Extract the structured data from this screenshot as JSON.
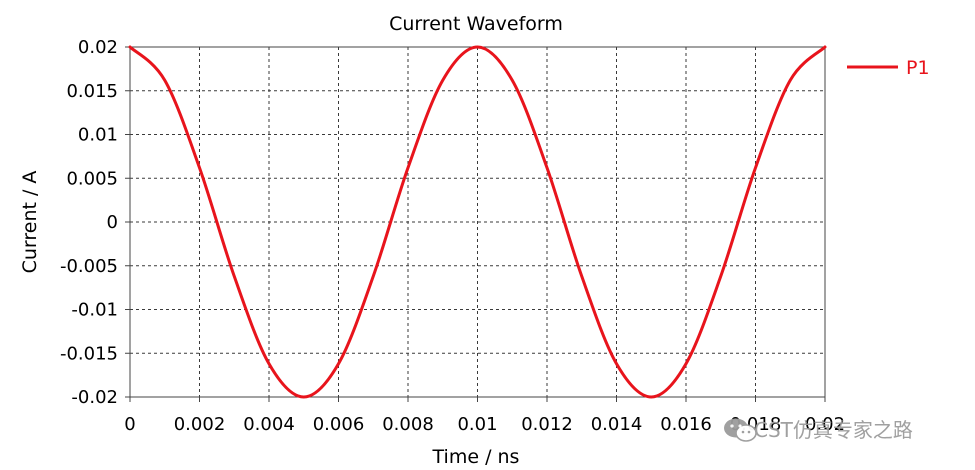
{
  "chart_data": {
    "type": "line",
    "title": "Current Waveform",
    "xlabel": "Time / ns",
    "ylabel": "Current / A",
    "xlim": [
      0,
      0.02
    ],
    "ylim": [
      -0.02,
      0.02
    ],
    "grid": true,
    "legend_position": "top-right-outside",
    "x_ticks": [
      "0",
      "0.002",
      "0.004",
      "0.006",
      "0.008",
      "0.01",
      "0.012",
      "0.014",
      "0.016",
      "0.018",
      "0.02"
    ],
    "y_ticks": [
      "0.02",
      "0.015",
      "0.01",
      "0.005",
      "0",
      "-0.005",
      "-0.01",
      "-0.015",
      "-0.02"
    ],
    "series": [
      {
        "name": "P1",
        "color": "#e8141c",
        "x": [
          0,
          0.001,
          0.002,
          0.003,
          0.004,
          0.005,
          0.006,
          0.007,
          0.008,
          0.009,
          0.01,
          0.011,
          0.012,
          0.013,
          0.014,
          0.015,
          0.016,
          0.017,
          0.018,
          0.019,
          0.02
        ],
        "values": [
          0.02,
          0.0162,
          0.0062,
          -0.0062,
          -0.0162,
          -0.02,
          -0.0162,
          -0.0062,
          0.0062,
          0.0162,
          0.02,
          0.0162,
          0.0062,
          -0.0062,
          -0.0162,
          -0.02,
          -0.0162,
          -0.0062,
          0.0062,
          0.0162,
          0.02
        ]
      }
    ]
  },
  "watermark": {
    "text": "CST仿真专家之路",
    "icon": "wechat-icon"
  }
}
